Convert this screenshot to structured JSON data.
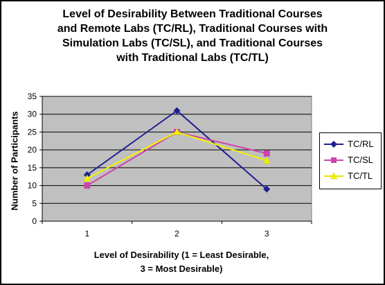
{
  "chart_data": {
    "type": "line",
    "title_lines": [
      "Level of Desirability Between Traditional Courses",
      "and Remote Labs (TC/RL), Traditional Courses with",
      "Simulation Labs (TC/SL), and Traditional Courses",
      "with Traditional Labs (TC/TL)"
    ],
    "xlabel_lines": [
      "Level of Desirability (1 = Least Desirable,",
      "3 = Most Desirable)"
    ],
    "ylabel": "Number of Participants",
    "categories": [
      "1",
      "2",
      "3"
    ],
    "ylim": [
      0,
      35
    ],
    "yticks": [
      "0",
      "5",
      "10",
      "15",
      "20",
      "25",
      "30",
      "35"
    ],
    "grid": true,
    "legend_position": "right",
    "plot_background": "#c0c0c0",
    "series": [
      {
        "name": "TC/RL",
        "values": [
          13,
          31,
          9
        ],
        "color": "#1f1f8f",
        "marker": "diamond"
      },
      {
        "name": "TC/SL",
        "values": [
          10,
          25,
          19
        ],
        "color": "#cc44aa",
        "marker": "square"
      },
      {
        "name": "TC/TL",
        "values": [
          12,
          25,
          17
        ],
        "color": "#f2f200",
        "marker": "triangle"
      }
    ]
  }
}
